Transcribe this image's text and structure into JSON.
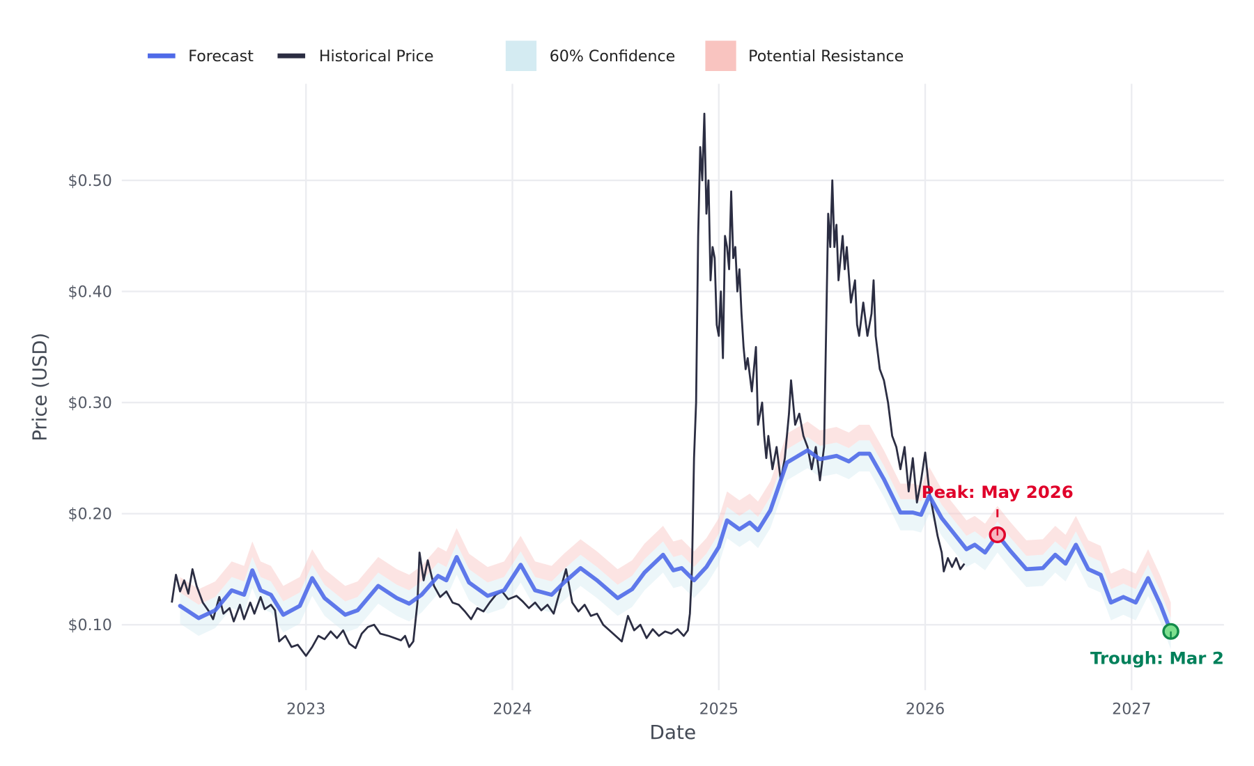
{
  "chart_data": {
    "type": "line",
    "title": "",
    "xlabel": "Date",
    "ylabel": "Price (USD)",
    "xlim": [
      2022.1,
      2027.45
    ],
    "ylim": [
      0.04,
      0.585
    ],
    "grid": true,
    "legend_position": "top-left",
    "x_ticks": [
      2023,
      2024,
      2025,
      2026,
      2027
    ],
    "x_tick_labels": [
      "2023",
      "2024",
      "2025",
      "2026",
      "2027"
    ],
    "y_ticks": [
      0.1,
      0.2,
      0.3,
      0.4,
      0.5
    ],
    "y_tick_labels": [
      "$0.10",
      "$0.20",
      "$0.30",
      "$0.40",
      "$0.50"
    ],
    "legend": [
      "Forecast",
      "Historical Price",
      "60% Confidence",
      "Potential Resistance"
    ],
    "colors": {
      "forecast": "#4f6ae8",
      "historical": "#2b2d42",
      "confidence": "#d4ebf2",
      "resistance": "#f9c4c0",
      "peak": "#e0002a",
      "trough": "#00805a",
      "grid": "#ebecf0"
    },
    "confidence_band_offsets": {
      "lower": -0.016,
      "upper": 0.012
    },
    "resistance_band_offsets": {
      "lower": 0.012,
      "upper": 0.026
    },
    "series": [
      {
        "name": "Historical Price",
        "points": [
          [
            2022.35,
            0.12
          ],
          [
            2022.37,
            0.145
          ],
          [
            2022.39,
            0.13
          ],
          [
            2022.41,
            0.14
          ],
          [
            2022.43,
            0.128
          ],
          [
            2022.45,
            0.15
          ],
          [
            2022.47,
            0.135
          ],
          [
            2022.5,
            0.12
          ],
          [
            2022.53,
            0.112
          ],
          [
            2022.55,
            0.105
          ],
          [
            2022.58,
            0.125
          ],
          [
            2022.6,
            0.11
          ],
          [
            2022.63,
            0.115
          ],
          [
            2022.65,
            0.103
          ],
          [
            2022.68,
            0.118
          ],
          [
            2022.7,
            0.105
          ],
          [
            2022.73,
            0.12
          ],
          [
            2022.75,
            0.11
          ],
          [
            2022.78,
            0.125
          ],
          [
            2022.8,
            0.114
          ],
          [
            2022.83,
            0.118
          ],
          [
            2022.85,
            0.113
          ],
          [
            2022.87,
            0.085
          ],
          [
            2022.9,
            0.09
          ],
          [
            2022.93,
            0.08
          ],
          [
            2022.96,
            0.082
          ],
          [
            2023.0,
            0.072
          ],
          [
            2023.03,
            0.08
          ],
          [
            2023.06,
            0.09
          ],
          [
            2023.09,
            0.087
          ],
          [
            2023.12,
            0.094
          ],
          [
            2023.15,
            0.088
          ],
          [
            2023.18,
            0.095
          ],
          [
            2023.21,
            0.083
          ],
          [
            2023.24,
            0.079
          ],
          [
            2023.27,
            0.092
          ],
          [
            2023.3,
            0.098
          ],
          [
            2023.33,
            0.1
          ],
          [
            2023.36,
            0.092
          ],
          [
            2023.4,
            0.09
          ],
          [
            2023.43,
            0.088
          ],
          [
            2023.46,
            0.086
          ],
          [
            2023.48,
            0.09
          ],
          [
            2023.5,
            0.08
          ],
          [
            2023.52,
            0.085
          ],
          [
            2023.54,
            0.12
          ],
          [
            2023.55,
            0.165
          ],
          [
            2023.57,
            0.14
          ],
          [
            2023.59,
            0.158
          ],
          [
            2023.62,
            0.135
          ],
          [
            2023.65,
            0.125
          ],
          [
            2023.68,
            0.13
          ],
          [
            2023.71,
            0.12
          ],
          [
            2023.74,
            0.118
          ],
          [
            2023.77,
            0.112
          ],
          [
            2023.8,
            0.105
          ],
          [
            2023.83,
            0.115
          ],
          [
            2023.86,
            0.112
          ],
          [
            2023.89,
            0.12
          ],
          [
            2023.92,
            0.127
          ],
          [
            2023.95,
            0.13
          ],
          [
            2023.98,
            0.123
          ],
          [
            2024.02,
            0.126
          ],
          [
            2024.05,
            0.121
          ],
          [
            2024.08,
            0.115
          ],
          [
            2024.11,
            0.12
          ],
          [
            2024.14,
            0.113
          ],
          [
            2024.17,
            0.118
          ],
          [
            2024.2,
            0.11
          ],
          [
            2024.23,
            0.13
          ],
          [
            2024.26,
            0.15
          ],
          [
            2024.29,
            0.12
          ],
          [
            2024.32,
            0.112
          ],
          [
            2024.35,
            0.118
          ],
          [
            2024.38,
            0.108
          ],
          [
            2024.41,
            0.11
          ],
          [
            2024.44,
            0.1
          ],
          [
            2024.47,
            0.095
          ],
          [
            2024.5,
            0.09
          ],
          [
            2024.53,
            0.085
          ],
          [
            2024.56,
            0.108
          ],
          [
            2024.59,
            0.095
          ],
          [
            2024.62,
            0.1
          ],
          [
            2024.65,
            0.088
          ],
          [
            2024.68,
            0.096
          ],
          [
            2024.71,
            0.09
          ],
          [
            2024.74,
            0.094
          ],
          [
            2024.77,
            0.092
          ],
          [
            2024.8,
            0.096
          ],
          [
            2024.83,
            0.09
          ],
          [
            2024.85,
            0.095
          ],
          [
            2024.86,
            0.11
          ],
          [
            2024.87,
            0.15
          ],
          [
            2024.88,
            0.25
          ],
          [
            2024.89,
            0.3
          ],
          [
            2024.9,
            0.45
          ],
          [
            2024.91,
            0.53
          ],
          [
            2024.92,
            0.5
          ],
          [
            2024.93,
            0.56
          ],
          [
            2024.94,
            0.47
          ],
          [
            2024.95,
            0.5
          ],
          [
            2024.96,
            0.41
          ],
          [
            2024.97,
            0.44
          ],
          [
            2024.98,
            0.43
          ],
          [
            2024.99,
            0.37
          ],
          [
            2025.0,
            0.36
          ],
          [
            2025.01,
            0.4
          ],
          [
            2025.02,
            0.34
          ],
          [
            2025.03,
            0.45
          ],
          [
            2025.04,
            0.44
          ],
          [
            2025.05,
            0.42
          ],
          [
            2025.06,
            0.49
          ],
          [
            2025.07,
            0.43
          ],
          [
            2025.08,
            0.44
          ],
          [
            2025.09,
            0.4
          ],
          [
            2025.1,
            0.42
          ],
          [
            2025.11,
            0.38
          ],
          [
            2025.12,
            0.35
          ],
          [
            2025.13,
            0.33
          ],
          [
            2025.14,
            0.34
          ],
          [
            2025.16,
            0.31
          ],
          [
            2025.18,
            0.35
          ],
          [
            2025.19,
            0.28
          ],
          [
            2025.21,
            0.3
          ],
          [
            2025.22,
            0.27
          ],
          [
            2025.23,
            0.25
          ],
          [
            2025.24,
            0.27
          ],
          [
            2025.26,
            0.24
          ],
          [
            2025.28,
            0.26
          ],
          [
            2025.3,
            0.23
          ],
          [
            2025.32,
            0.25
          ],
          [
            2025.34,
            0.29
          ],
          [
            2025.35,
            0.32
          ],
          [
            2025.37,
            0.28
          ],
          [
            2025.39,
            0.29
          ],
          [
            2025.41,
            0.27
          ],
          [
            2025.43,
            0.26
          ],
          [
            2025.45,
            0.24
          ],
          [
            2025.47,
            0.26
          ],
          [
            2025.49,
            0.23
          ],
          [
            2025.51,
            0.26
          ],
          [
            2025.53,
            0.47
          ],
          [
            2025.54,
            0.44
          ],
          [
            2025.55,
            0.5
          ],
          [
            2025.56,
            0.44
          ],
          [
            2025.57,
            0.46
          ],
          [
            2025.58,
            0.41
          ],
          [
            2025.6,
            0.45
          ],
          [
            2025.61,
            0.42
          ],
          [
            2025.62,
            0.44
          ],
          [
            2025.64,
            0.39
          ],
          [
            2025.66,
            0.41
          ],
          [
            2025.67,
            0.37
          ],
          [
            2025.68,
            0.36
          ],
          [
            2025.7,
            0.39
          ],
          [
            2025.72,
            0.36
          ],
          [
            2025.74,
            0.38
          ],
          [
            2025.75,
            0.41
          ],
          [
            2025.76,
            0.36
          ],
          [
            2025.78,
            0.33
          ],
          [
            2025.8,
            0.32
          ],
          [
            2025.82,
            0.3
          ],
          [
            2025.84,
            0.27
          ],
          [
            2025.86,
            0.26
          ],
          [
            2025.88,
            0.24
          ],
          [
            2025.9,
            0.26
          ],
          [
            2025.92,
            0.22
          ],
          [
            2025.94,
            0.25
          ],
          [
            2025.96,
            0.21
          ],
          [
            2025.98,
            0.23
          ],
          [
            2026.0,
            0.255
          ],
          [
            2026.02,
            0.22
          ],
          [
            2026.04,
            0.2
          ],
          [
            2026.06,
            0.18
          ],
          [
            2026.08,
            0.165
          ],
          [
            2026.09,
            0.148
          ],
          [
            2026.11,
            0.16
          ],
          [
            2026.13,
            0.152
          ],
          [
            2026.15,
            0.16
          ],
          [
            2026.17,
            0.15
          ],
          [
            2026.19,
            0.155
          ]
        ]
      },
      {
        "name": "Forecast",
        "points": [
          [
            2022.39,
            0.117
          ],
          [
            2022.48,
            0.106
          ],
          [
            2022.56,
            0.113
          ],
          [
            2022.64,
            0.131
          ],
          [
            2022.7,
            0.127
          ],
          [
            2022.74,
            0.149
          ],
          [
            2022.78,
            0.131
          ],
          [
            2022.83,
            0.127
          ],
          [
            2022.89,
            0.109
          ],
          [
            2022.97,
            0.117
          ],
          [
            2023.03,
            0.142
          ],
          [
            2023.09,
            0.124
          ],
          [
            2023.19,
            0.109
          ],
          [
            2023.25,
            0.113
          ],
          [
            2023.35,
            0.135
          ],
          [
            2023.44,
            0.124
          ],
          [
            2023.5,
            0.119
          ],
          [
            2023.56,
            0.127
          ],
          [
            2023.64,
            0.144
          ],
          [
            2023.68,
            0.14
          ],
          [
            2023.73,
            0.161
          ],
          [
            2023.79,
            0.138
          ],
          [
            2023.88,
            0.126
          ],
          [
            2023.96,
            0.131
          ],
          [
            2024.04,
            0.154
          ],
          [
            2024.11,
            0.131
          ],
          [
            2024.19,
            0.127
          ],
          [
            2024.25,
            0.138
          ],
          [
            2024.33,
            0.151
          ],
          [
            2024.41,
            0.14
          ],
          [
            2024.51,
            0.124
          ],
          [
            2024.58,
            0.132
          ],
          [
            2024.64,
            0.147
          ],
          [
            2024.73,
            0.163
          ],
          [
            2024.78,
            0.149
          ],
          [
            2024.82,
            0.151
          ],
          [
            2024.88,
            0.14
          ],
          [
            2024.94,
            0.152
          ],
          [
            2025.0,
            0.17
          ],
          [
            2025.04,
            0.194
          ],
          [
            2025.1,
            0.186
          ],
          [
            2025.15,
            0.192
          ],
          [
            2025.19,
            0.185
          ],
          [
            2025.25,
            0.203
          ],
          [
            2025.33,
            0.246
          ],
          [
            2025.43,
            0.257
          ],
          [
            2025.49,
            0.249
          ],
          [
            2025.57,
            0.252
          ],
          [
            2025.63,
            0.247
          ],
          [
            2025.68,
            0.254
          ],
          [
            2025.73,
            0.254
          ],
          [
            2025.8,
            0.231
          ],
          [
            2025.88,
            0.201
          ],
          [
            2025.94,
            0.201
          ],
          [
            2025.98,
            0.199
          ],
          [
            2026.02,
            0.216
          ],
          [
            2026.08,
            0.196
          ],
          [
            2026.14,
            0.182
          ],
          [
            2026.2,
            0.168
          ],
          [
            2026.24,
            0.172
          ],
          [
            2026.29,
            0.165
          ],
          [
            2026.35,
            0.181
          ],
          [
            2026.41,
            0.167
          ],
          [
            2026.49,
            0.15
          ],
          [
            2026.57,
            0.151
          ],
          [
            2026.63,
            0.163
          ],
          [
            2026.68,
            0.155
          ],
          [
            2026.73,
            0.172
          ],
          [
            2026.79,
            0.15
          ],
          [
            2026.85,
            0.145
          ],
          [
            2026.9,
            0.12
          ],
          [
            2026.96,
            0.125
          ],
          [
            2027.02,
            0.12
          ],
          [
            2027.08,
            0.142
          ],
          [
            2027.14,
            0.118
          ],
          [
            2027.19,
            0.094
          ]
        ]
      }
    ],
    "annotations": [
      {
        "label": "Peak: May 2026",
        "x": 2026.35,
        "y": 0.181,
        "kind": "peak"
      },
      {
        "label": "Trough: Mar 2",
        "x": 2027.19,
        "y": 0.094,
        "kind": "trough"
      }
    ]
  }
}
